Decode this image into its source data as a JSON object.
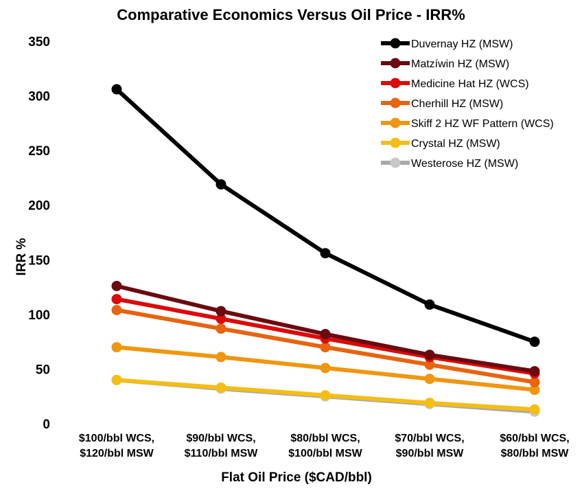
{
  "chart_data": {
    "type": "line",
    "title": "Comparative Economics Versus Oil Price - IRR%",
    "xlabel": "Flat Oil Price ($CAD/bbl)",
    "ylabel": "IRR %",
    "ylim": [
      0,
      350
    ],
    "yticks": [
      0,
      50,
      100,
      150,
      200,
      250,
      300,
      350
    ],
    "grid": false,
    "legend_position": "top-right",
    "categories": [
      [
        "$100/bbl WCS,",
        "$120/bbl MSW"
      ],
      [
        "$90/bbl WCS,",
        "$110/bbl MSW"
      ],
      [
        "$80/bbl WCS,",
        "$100/bbl MSW"
      ],
      [
        "$70/bbl WCS,",
        "$90/bbl MSW"
      ],
      [
        "$60/bbl WCS,",
        "$80/bbl MSW"
      ]
    ],
    "series": [
      {
        "name": "Duvernay HZ (MSW)",
        "color": "#000000",
        "values": [
          306,
          219,
          156,
          109,
          75
        ]
      },
      {
        "name": "Matzíwin HZ (MSW)",
        "color": "#6b0a0f",
        "values": [
          126,
          103,
          82,
          63,
          48
        ]
      },
      {
        "name": "Medicine Hat HZ (WCS)",
        "color": "#dc0a0a",
        "values": [
          114,
          96,
          78,
          61,
          46
        ]
      },
      {
        "name": "Cherhill HZ (MSW)",
        "color": "#e8640f",
        "values": [
          104,
          87,
          70,
          54,
          38
        ]
      },
      {
        "name": "Skiff 2 HZ WF Pattern (WCS)",
        "color": "#f0960f",
        "values": [
          70,
          61,
          51,
          41,
          31
        ]
      },
      {
        "name": "Crystal HZ (MSW)",
        "color": "#f5be14",
        "values": [
          40,
          33,
          26,
          19,
          13
        ]
      },
      {
        "name": "Westerose HZ (MSW)",
        "color": "#a9a9a9",
        "marker_color": "#c8c8c8",
        "values": [
          40,
          32,
          25,
          18,
          11
        ]
      }
    ]
  }
}
